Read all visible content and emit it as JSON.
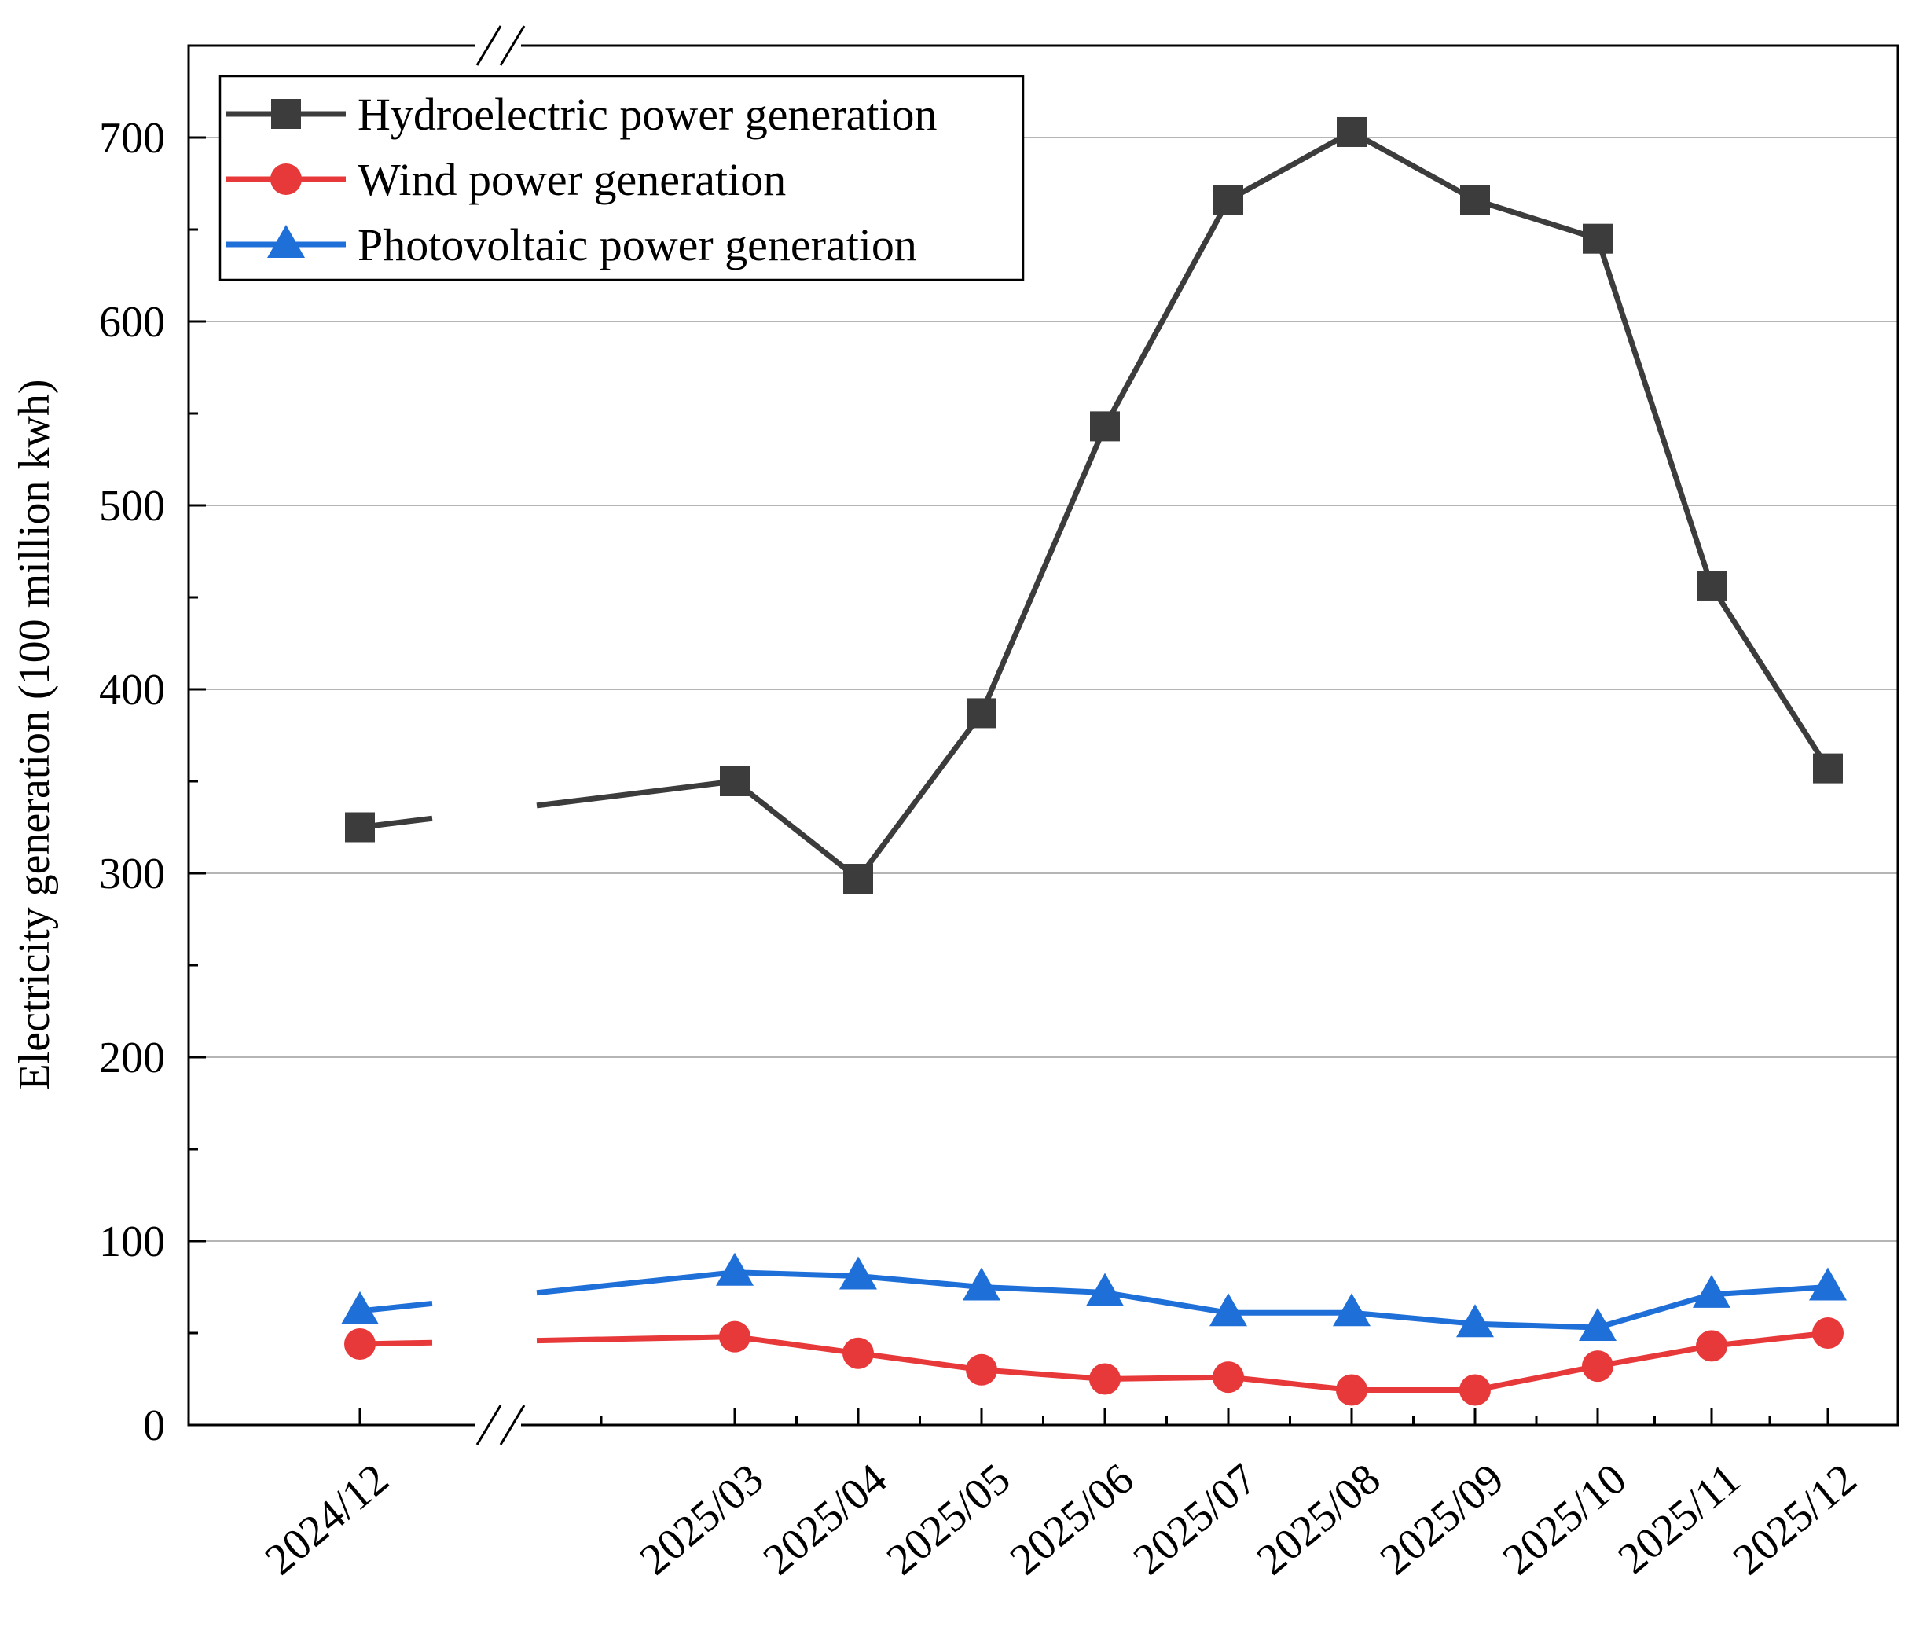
{
  "chart_data": {
    "type": "line",
    "title": "",
    "xlabel": "",
    "ylabel": "Electricity generation (100 million kwh)",
    "categories": [
      "2024/12",
      "2025/03",
      "2025/04",
      "2025/05",
      "2025/06",
      "2025/07",
      "2025/08",
      "2025/09",
      "2025/10",
      "2025/11",
      "2025/12"
    ],
    "ylim": [
      0,
      750
    ],
    "yticks": [
      0,
      100,
      200,
      300,
      400,
      500,
      600,
      700
    ],
    "axis_break": "between 2024/12 and 2025/03",
    "grid": "horizontal",
    "legend_position": "top-left",
    "series": [
      {
        "name": "Hydroelectric power generation",
        "color": "#3c3c3c",
        "marker": "square",
        "values": [
          325,
          350,
          297,
          387,
          543,
          666,
          703,
          666,
          645,
          456,
          357
        ]
      },
      {
        "name": "Wind power generation",
        "color": "#e8393a",
        "marker": "circle",
        "values": [
          44,
          48,
          39,
          30,
          25,
          26,
          19,
          19,
          32,
          43,
          50
        ]
      },
      {
        "name": "Photovoltaic power generation",
        "color": "#1f6fd8",
        "marker": "triangle",
        "values": [
          62,
          83,
          81,
          75,
          72,
          61,
          61,
          55,
          53,
          71,
          75
        ]
      }
    ]
  }
}
